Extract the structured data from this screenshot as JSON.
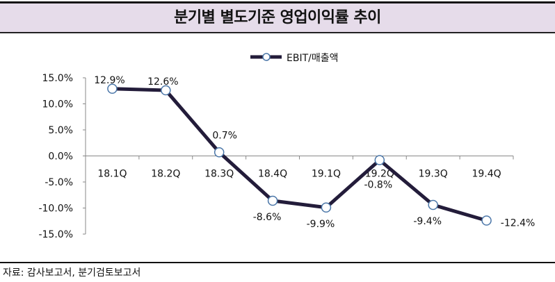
{
  "title": "분기별 별도기준 영업이익률 추이",
  "source": "자료: 감사보고서, 분기검토보고서",
  "chart_data": {
    "type": "line",
    "title": "분기별 별도기준 영업이익률 추이",
    "categories": [
      "18.1Q",
      "18.2Q",
      "18.3Q",
      "18.4Q",
      "19.1Q",
      "19.2Q",
      "19.3Q",
      "19.4Q"
    ],
    "series": [
      {
        "name": "EBIT/매출액",
        "values": [
          12.9,
          12.6,
          0.7,
          -8.6,
          -9.9,
          -0.8,
          -9.4,
          -12.4
        ],
        "color": "#231c3a"
      }
    ],
    "data_labels": [
      "12.9%",
      "12.6%",
      "0.7%",
      "-8.6%",
      "-9.9%",
      "-0.8%",
      "-9.4%",
      "-12.4%"
    ],
    "yticks": [
      "15.0%",
      "10.0%",
      "5.0%",
      "0.0%",
      "-5.0%",
      "-10.0%",
      "-15.0%"
    ],
    "ytick_values": [
      15,
      10,
      5,
      0,
      -5,
      -10,
      -15
    ],
    "ylim": [
      -15,
      15
    ],
    "legend": "top-center",
    "grid": false
  }
}
